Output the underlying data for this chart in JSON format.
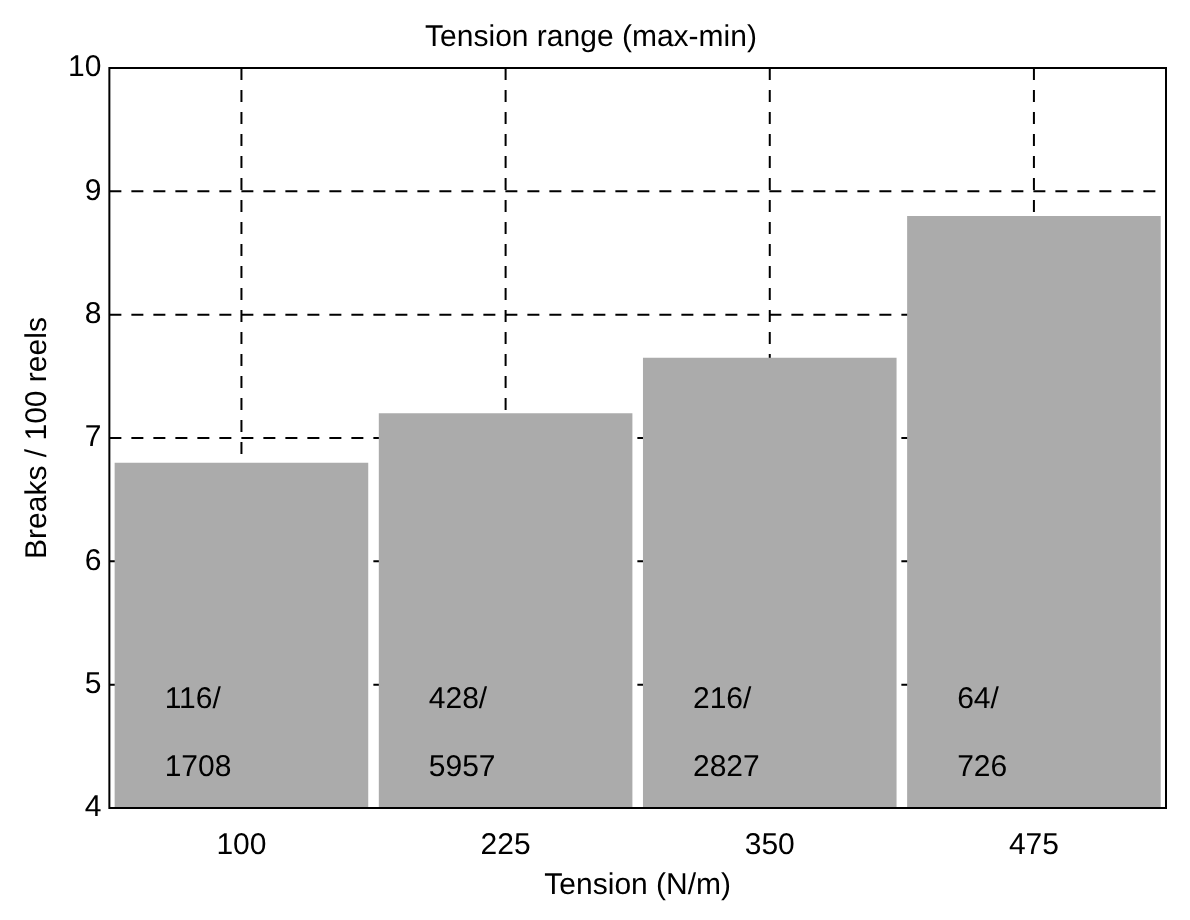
{
  "chart_data": {
    "type": "bar",
    "title": "Tension range (max-min)",
    "xlabel": "Tension (N/m)",
    "ylabel": "Breaks / 100 reels",
    "categories": [
      "100",
      "225",
      "350",
      "475"
    ],
    "values": [
      6.8,
      7.2,
      7.65,
      8.8
    ],
    "color": "#ababab",
    "ylim": [
      4,
      10
    ],
    "yticks": [
      4,
      5,
      6,
      7,
      8,
      9,
      10
    ],
    "grid": true,
    "line_style": "dashed",
    "annotations": [
      "116/\n1708",
      "428/\n5957",
      "216/\n2827",
      "64/\n726"
    ]
  }
}
